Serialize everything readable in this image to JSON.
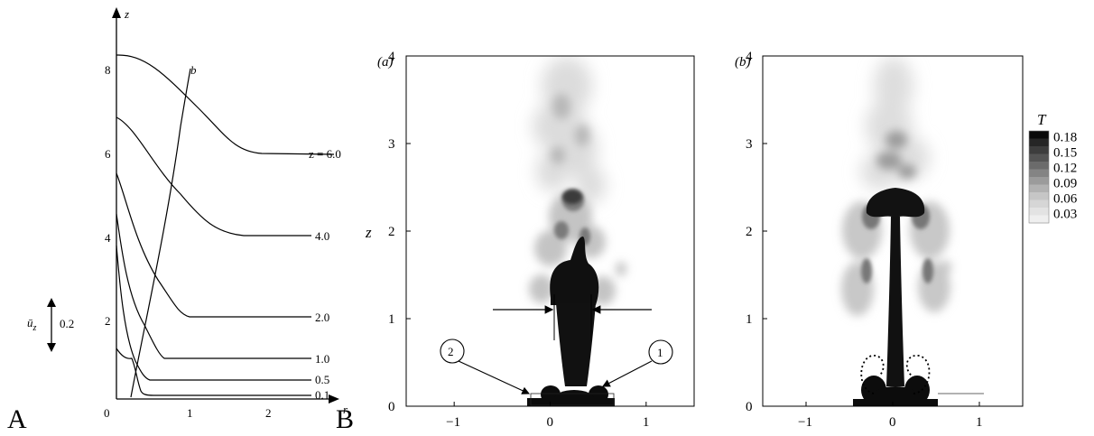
{
  "panel_labels": [
    "A",
    "B"
  ],
  "panel_a": {
    "x_axis_label": "r",
    "y_axis_label": "z",
    "x_ticks": [
      "0",
      "1",
      "2"
    ],
    "y_ticks": [
      "2",
      "4",
      "6",
      "8"
    ],
    "width_curve_label": "b",
    "scale_bar_symbol": "ū",
    "scale_bar_subscript": "z",
    "scale_bar_value": "0.2",
    "profile_labels": [
      "z = 6.0",
      "4.0",
      "2.0",
      "1.0",
      "0.5",
      "0.1"
    ]
  },
  "panel_b": {
    "subplot_labels": [
      "(a)",
      "(b)"
    ],
    "y_axis_label": "z",
    "y_ticks": [
      "0",
      "1",
      "2",
      "3",
      "4"
    ],
    "x_ticks": [
      "−1",
      "0",
      "1"
    ],
    "callouts": [
      "1",
      "2"
    ],
    "colorbar_title": "T",
    "colorbar_ticks": [
      "0.18",
      "0.15",
      "0.12",
      "0.09",
      "0.06",
      "0.03"
    ],
    "colorbar_colors": [
      "#0a0a0a",
      "#262626",
      "#3d3d3d",
      "#545454",
      "#6b6b6b",
      "#848484",
      "#9b9b9b",
      "#b2b2b2",
      "#c6c6c6",
      "#d6d6d6",
      "#e3e3e3",
      "#efefef"
    ]
  },
  "chart_data": [
    {
      "type": "line",
      "title": "",
      "xlabel": "r",
      "ylabel": "z",
      "xlim": [
        0,
        2.5
      ],
      "ylim": [
        0,
        9
      ],
      "series": [
        {
          "name": "z = 6.0",
          "x": [
            0,
            0.4,
            0.9,
            1.5,
            2.5
          ],
          "values": [
            8.4,
            7.9,
            6.7,
            6.0,
            6.0
          ]
        },
        {
          "name": "4.0",
          "x": [
            0,
            0.3,
            0.7,
            1.2,
            2.5
          ],
          "values": [
            6.8,
            6.1,
            4.8,
            4.0,
            4.0
          ]
        },
        {
          "name": "2.0",
          "x": [
            0,
            0.2,
            0.5,
            0.8,
            2.5
          ],
          "values": [
            5.4,
            4.0,
            2.8,
            2.0,
            2.0
          ]
        },
        {
          "name": "1.0",
          "x": [
            0,
            0.15,
            0.35,
            0.55,
            2.5
          ],
          "values": [
            4.6,
            2.8,
            1.8,
            1.0,
            1.0
          ]
        },
        {
          "name": "0.5",
          "x": [
            0,
            0.1,
            0.25,
            0.4,
            2.5
          ],
          "values": [
            3.8,
            1.8,
            0.9,
            0.5,
            0.5
          ]
        },
        {
          "name": "0.1",
          "x": [
            0,
            0.1,
            0.2,
            0.3,
            2.5
          ],
          "values": [
            1.3,
            1.0,
            0.5,
            0.1,
            0.1
          ]
        },
        {
          "name": "b",
          "x": [
            0.25,
            0.45,
            0.65,
            0.85
          ],
          "values": [
            0.1,
            2.8,
            5.6,
            8.1
          ]
        }
      ]
    },
    {
      "type": "heatmap",
      "title": "(a)",
      "xlabel": "",
      "ylabel": "z",
      "xlim": [
        -1.5,
        1.5
      ],
      "ylim": [
        0,
        4
      ],
      "colorbar": {
        "label": "T",
        "values": [
          0.18,
          0.15,
          0.12,
          0.09,
          0.06,
          0.03
        ]
      }
    },
    {
      "type": "heatmap",
      "title": "(b)",
      "xlabel": "",
      "ylabel": "",
      "xlim": [
        -1.5,
        1.5
      ],
      "ylim": [
        0,
        4
      ],
      "colorbar": {
        "label": "T",
        "values": [
          0.18,
          0.15,
          0.12,
          0.09,
          0.06,
          0.03
        ]
      }
    }
  ]
}
